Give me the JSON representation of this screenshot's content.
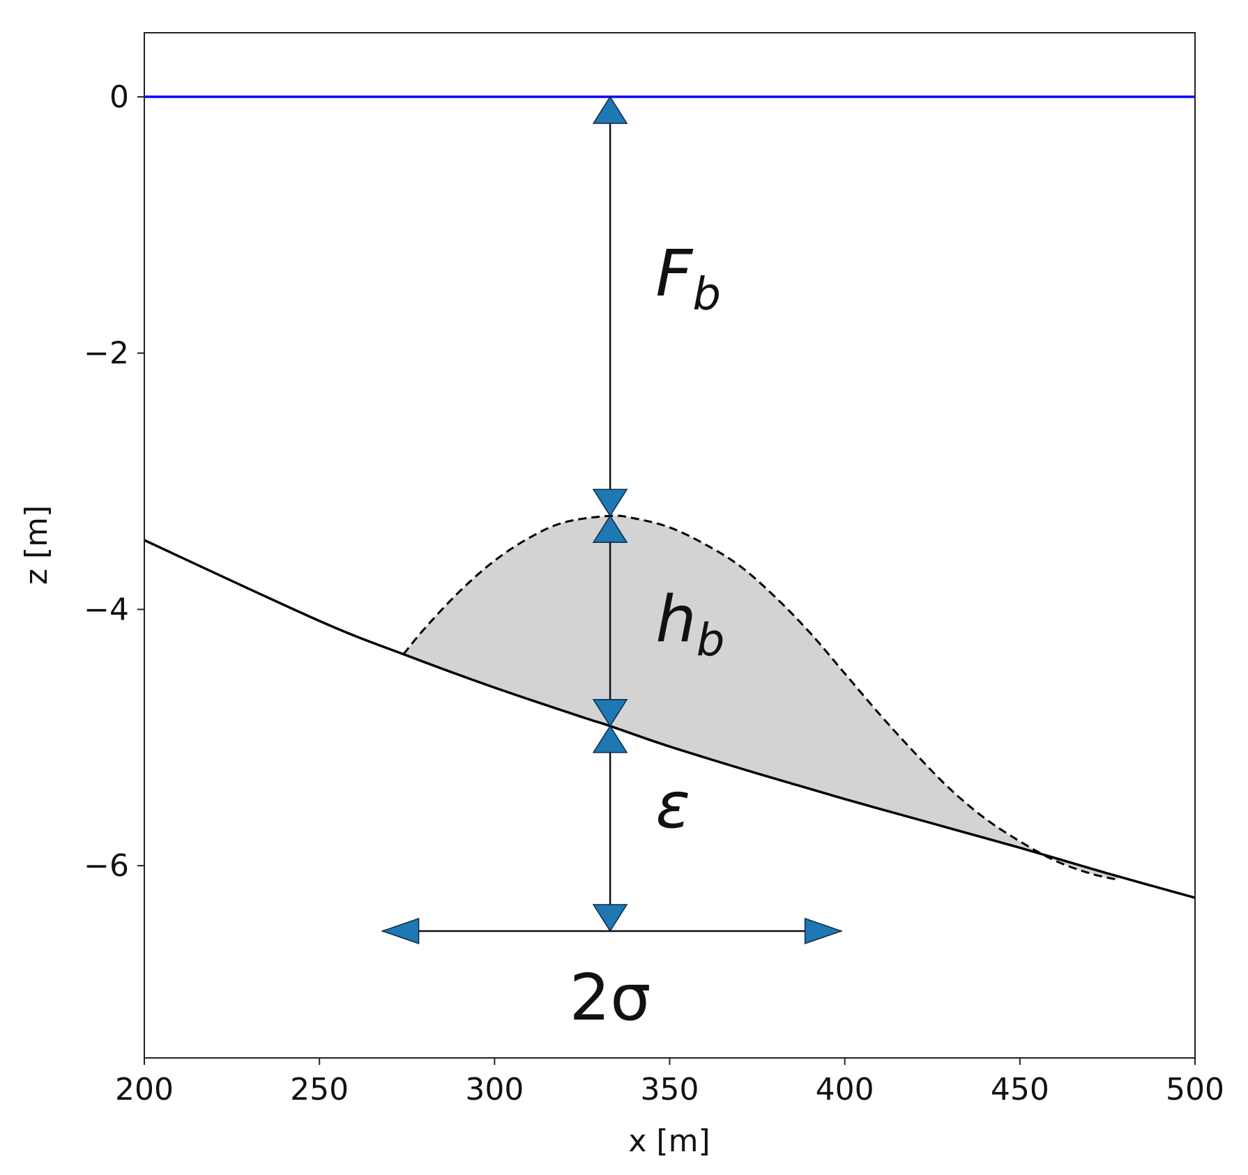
{
  "chart_data": {
    "type": "line",
    "title": "",
    "xlabel": "x [m]",
    "ylabel": "z [m]",
    "xlim": [
      200,
      500
    ],
    "ylim": [
      -7.5,
      0.5
    ],
    "xticks": [
      200,
      250,
      300,
      350,
      400,
      450,
      500
    ],
    "yticks": [
      0,
      -2,
      -4,
      -6
    ],
    "xtick_labels": [
      "200",
      "250",
      "300",
      "350",
      "400",
      "450",
      "500"
    ],
    "ytick_labels": [
      "0",
      "−2",
      "−4",
      "−6"
    ],
    "grid": false,
    "legend": "none",
    "series": [
      {
        "style": "solid",
        "color": "#0000ff",
        "x": [
          200,
          500
        ],
        "y": [
          0,
          0
        ]
      },
      {
        "style": "solid",
        "color": "#000000",
        "x": [
          200,
          250,
          275,
          300,
          325,
          333,
          350,
          375,
          400,
          425,
          450,
          475,
          500
        ],
        "y": [
          -3.46,
          -4.09,
          -4.36,
          -4.61,
          -4.84,
          -4.91,
          -5.07,
          -5.28,
          -5.48,
          -5.67,
          -5.86,
          -6.06,
          -6.25
        ]
      },
      {
        "style": "dashed",
        "color": "#000000",
        "fill": "#d3d3d3",
        "x": [
          274,
          280,
          290,
          300,
          310,
          320,
          333,
          340,
          350,
          360,
          370,
          380,
          390,
          400,
          410,
          420,
          430,
          440,
          450,
          460,
          470,
          478
        ],
        "y": [
          -4.35,
          -4.15,
          -3.86,
          -3.62,
          -3.44,
          -3.32,
          -3.27,
          -3.29,
          -3.36,
          -3.49,
          -3.66,
          -3.9,
          -4.18,
          -4.5,
          -4.82,
          -5.12,
          -5.4,
          -5.63,
          -5.81,
          -5.96,
          -6.06,
          -6.11
        ]
      }
    ],
    "annotations": [
      {
        "type": "vertical-arrow",
        "x": 333,
        "y_from": 0,
        "y_to": -3.27,
        "marker_color": "#1f77b4",
        "label": "F",
        "subscript": "b",
        "label_x": 346,
        "label_y": -1.55
      },
      {
        "type": "vertical-arrow",
        "x": 333,
        "y_from": -3.27,
        "y_to": -4.91,
        "marker_color": "#1f77b4",
        "label": "h",
        "subscript": "b",
        "label_x": 346,
        "label_y": -4.25
      },
      {
        "type": "vertical-arrow",
        "x": 333,
        "y_from": -4.91,
        "y_to": -6.51,
        "marker_color": "#1f77b4",
        "label": "ε",
        "subscript": "",
        "label_x": 346,
        "label_y": -5.7
      },
      {
        "type": "horizontal-arrow",
        "y": -6.51,
        "x_from": 268,
        "x_to": 399,
        "marker_color": "#1f77b4",
        "label": "2σ",
        "subscript": "",
        "label_x": 333,
        "label_y": -7.2
      }
    ]
  }
}
